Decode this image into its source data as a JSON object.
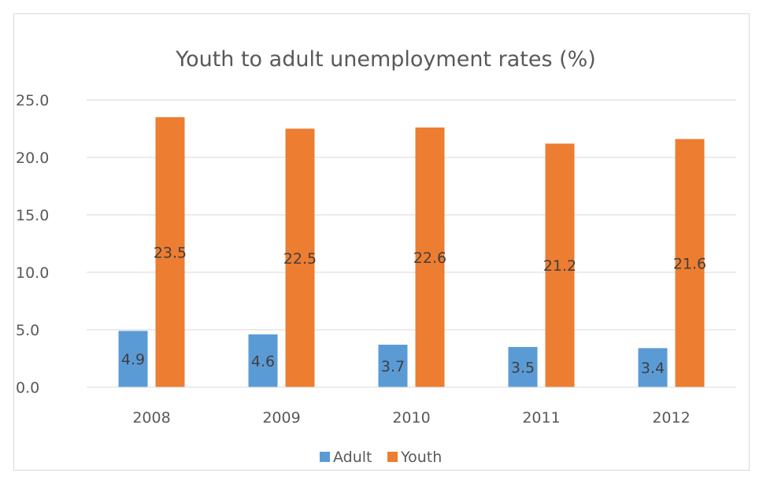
{
  "chart_data": {
    "type": "bar",
    "title": "Youth to adult unemployment rates (%)",
    "categories": [
      "2008",
      "2009",
      "2010",
      "2011",
      "2012"
    ],
    "series": [
      {
        "name": "Adult",
        "values": [
          4.9,
          4.6,
          3.7,
          3.5,
          3.4
        ],
        "color": "#5b9bd5"
      },
      {
        "name": "Youth",
        "values": [
          23.5,
          22.5,
          22.6,
          21.2,
          21.6
        ],
        "color": "#ed7d31"
      }
    ],
    "ylim": [
      0,
      25
    ],
    "yticks": [
      "0.0",
      "5.0",
      "10.0",
      "15.0",
      "20.0",
      "25.0"
    ],
    "grid": true,
    "legend": "bottom",
    "gridline_color": "#d9d9d9"
  }
}
